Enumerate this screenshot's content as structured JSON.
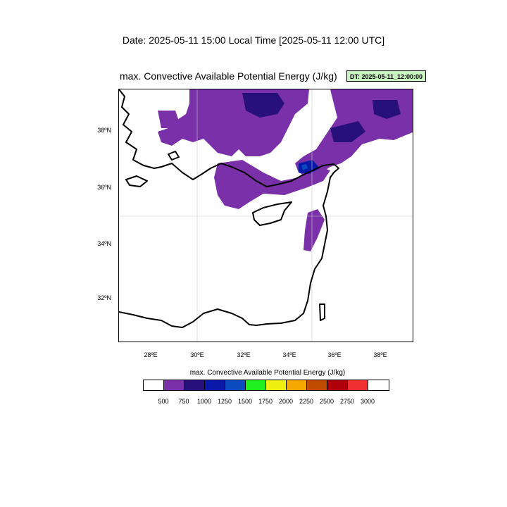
{
  "header": {
    "date_line": "Date: 2025-05-11  15:00 Local Time [2025-05-11  12:00 UTC]",
    "plot_title": "max. Convective Available Potential Energy   (J/kg)",
    "dt_badge": "DT: 2025-05-11_12:00:00"
  },
  "map": {
    "lat_labels": [
      "38ºN",
      "36ºN",
      "34ºN",
      "32ºN"
    ],
    "lon_labels": [
      "28ºE",
      "30ºE",
      "32ºE",
      "34ºE",
      "36ºE",
      "38ºE"
    ]
  },
  "colorbar": {
    "title": "max. Convective Available Potential Energy  (J/kg)",
    "colors": [
      "#ffffff",
      "#7a30a8",
      "#28107a",
      "#0a1aa8",
      "#0a4cc0",
      "#20f020",
      "#f0f010",
      "#f5a800",
      "#c04c00",
      "#b0000a",
      "#f03030",
      "#ffffff"
    ],
    "labels": [
      "500",
      "750",
      "1000",
      "1250",
      "1500",
      "1750",
      "2000",
      "2250",
      "2500",
      "2750",
      "3000"
    ]
  }
}
